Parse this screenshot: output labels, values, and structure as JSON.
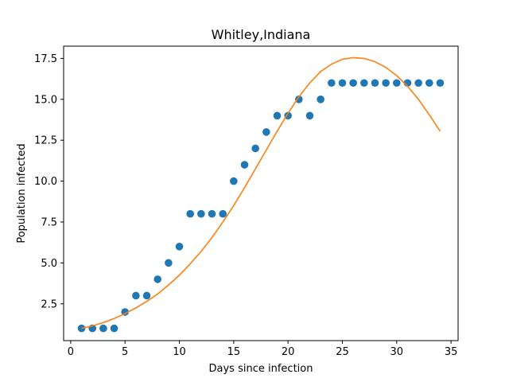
{
  "chart_data": {
    "type": "scatter",
    "title": "Whitley,Indiana",
    "xlabel": "Days since infection",
    "ylabel": "Population infected",
    "xlim": [
      -0.65,
      35.65
    ],
    "ylim": [
      0.25,
      18.25
    ],
    "xticks": [
      0,
      5,
      10,
      15,
      20,
      25,
      30,
      35
    ],
    "yticks": [
      2.5,
      5.0,
      7.5,
      10.0,
      12.5,
      15.0,
      17.5
    ],
    "ytick_labels": [
      "2.5",
      "5.0",
      "7.5",
      "10.0",
      "12.5",
      "15.0",
      "17.5"
    ],
    "grid": false,
    "series": [
      {
        "kind": "scatter",
        "color": "#1f77b4",
        "x": [
          1,
          2,
          3,
          4,
          5,
          6,
          7,
          8,
          9,
          10,
          11,
          12,
          13,
          14,
          15,
          16,
          17,
          18,
          19,
          20,
          21,
          22,
          23,
          24,
          25,
          26,
          27,
          28,
          29,
          30,
          31,
          32,
          33,
          34
        ],
        "y": [
          1,
          1,
          1,
          1,
          2,
          3,
          3,
          4,
          5,
          6,
          8,
          8,
          8,
          8,
          10,
          11,
          12,
          13,
          14,
          14,
          15,
          14,
          15,
          16,
          16,
          16,
          16,
          16,
          16,
          16,
          16,
          16,
          16,
          16
        ]
      },
      {
        "kind": "line",
        "color": "#ff7f0e",
        "x": [
          1,
          2,
          3,
          4,
          5,
          6,
          7,
          8,
          9,
          10,
          11,
          12,
          13,
          14,
          15,
          16,
          17,
          18,
          19,
          20,
          21,
          22,
          23,
          24,
          25,
          26,
          27,
          28,
          29,
          30,
          31,
          32,
          33,
          34
        ],
        "y": [
          1.0,
          1.15,
          1.35,
          1.6,
          1.9,
          2.25,
          2.65,
          3.1,
          3.65,
          4.25,
          4.95,
          5.7,
          6.55,
          7.5,
          8.5,
          9.6,
          10.75,
          11.9,
          13.05,
          14.15,
          15.15,
          16.0,
          16.7,
          17.15,
          17.45,
          17.55,
          17.5,
          17.3,
          16.95,
          16.45,
          15.8,
          15.0,
          14.05,
          13.05
        ]
      }
    ]
  }
}
